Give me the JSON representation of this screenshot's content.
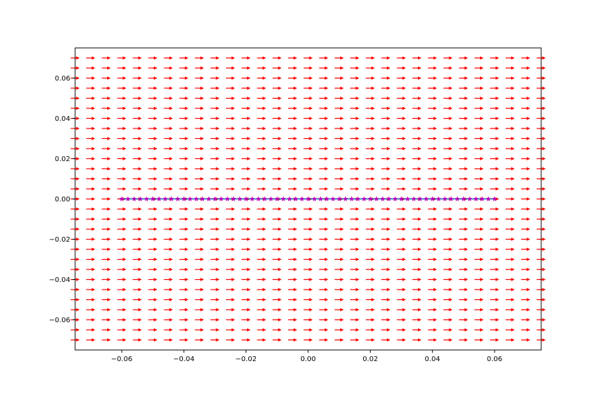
{
  "chart_data": {
    "type": "quiver",
    "title": "",
    "xlabel": "",
    "ylabel": "",
    "xlim": [
      -0.075,
      0.075
    ],
    "ylim": [
      -0.075,
      0.075
    ],
    "grid": false,
    "legend": "none",
    "x_ticks": [
      -0.06,
      -0.04,
      -0.02,
      0.0,
      0.02,
      0.04,
      0.06
    ],
    "x_tick_labels": [
      "−0.06",
      "−0.04",
      "−0.02",
      "0.00",
      "0.02",
      "0.04",
      "0.06"
    ],
    "y_ticks": [
      -0.06,
      -0.04,
      -0.02,
      0.0,
      0.02,
      0.04,
      0.06
    ],
    "y_tick_labels": [
      "−0.06",
      "−0.04",
      "−0.02",
      "0.00",
      "0.02",
      "0.04",
      "0.06"
    ],
    "vector_field": {
      "color": "#ff0000",
      "x_range": [
        -0.075,
        0.075
      ],
      "y_range": [
        -0.07,
        0.07
      ],
      "grid_step": 0.005,
      "direction": "rightward, tilting slightly toward the line y = 0 near its left end x = -0.06"
    },
    "line": {
      "marker": "star",
      "line_color": "#1f77b4",
      "marker_color": "#bf00bf",
      "x_start": -0.06,
      "x_end": 0.06,
      "x_step": 0.002,
      "y": 0.0
    }
  }
}
